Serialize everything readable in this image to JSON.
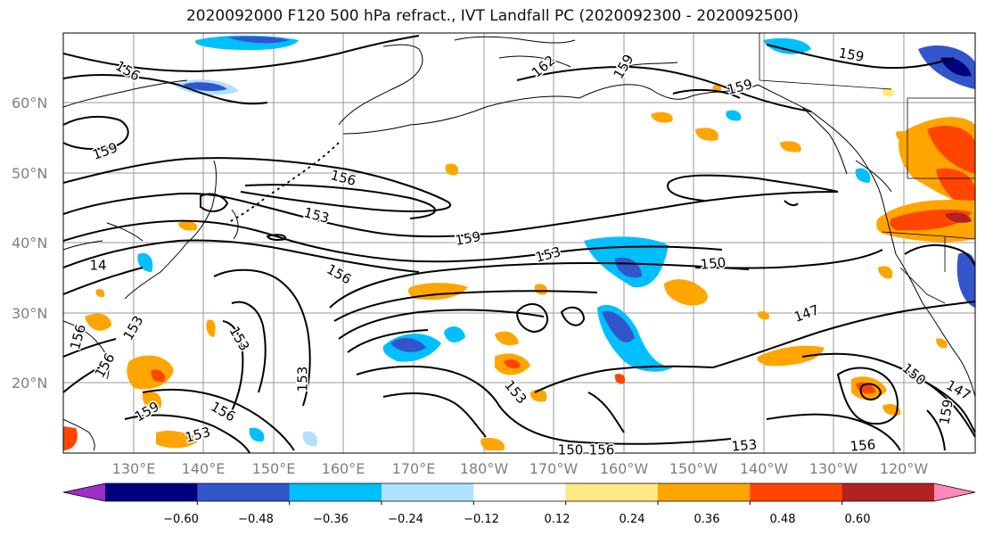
{
  "title": "2020092000 F120 500 hPa refract., IVT Landfall PC (2020092300 - 2020092500)",
  "lat_ticks": [
    "60°N",
    "50°N",
    "40°N",
    "30°N",
    "20°N"
  ],
  "lon_ticks": [
    "130°E",
    "140°E",
    "150°E",
    "160°E",
    "170°E",
    "180°W",
    "170°W",
    "160°W",
    "150°W",
    "140°W",
    "130°W",
    "120°W"
  ],
  "contour_labels": [
    "156",
    "159",
    "159",
    "162",
    "159",
    "159",
    "156",
    "153",
    "159",
    "153",
    "150",
    "156",
    "147",
    "153",
    "156",
    "153",
    "159",
    "153",
    "156",
    "153",
    "156",
    "150",
    "159",
    "147",
    "156",
    "153",
    "156",
    "153",
    "150",
    "14"
  ],
  "colorbar": {
    "ticks": [
      "−0.60",
      "−0.48",
      "−0.36",
      "−0.24",
      "−0.12",
      "0.12",
      "0.24",
      "0.36",
      "0.48",
      "0.60"
    ],
    "colors": [
      "#9b30c8",
      "#00007f",
      "#3355cc",
      "#00bfff",
      "#b0e2ff",
      "#ffffff",
      "#ffe980",
      "#ffa500",
      "#ff4500",
      "#b22222",
      "#ff88b4"
    ]
  }
}
